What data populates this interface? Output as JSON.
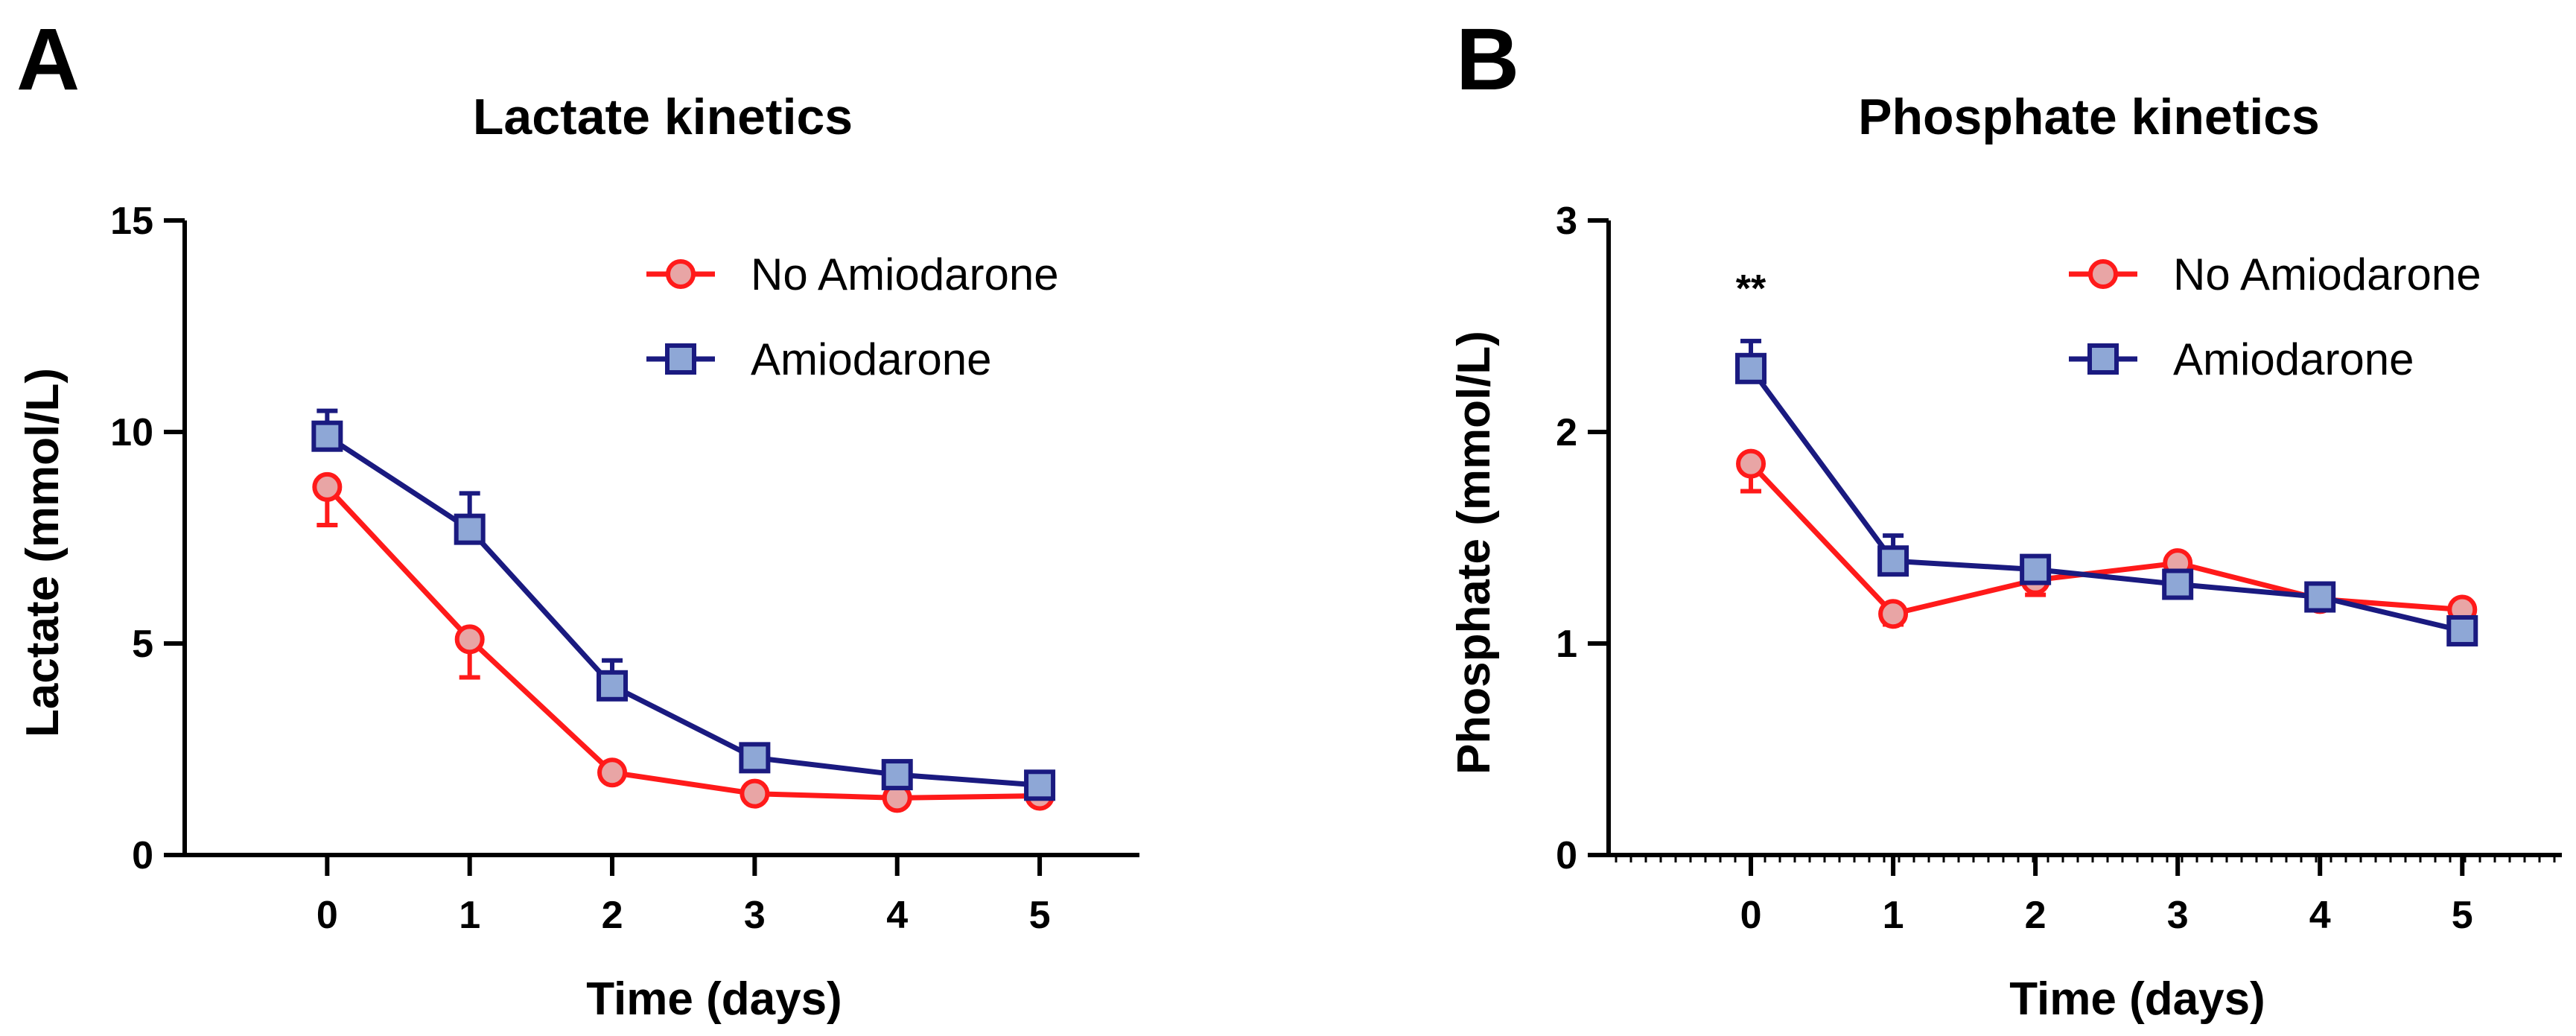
{
  "chart_data": [
    {
      "type": "line",
      "panel_label": "A",
      "title": "Lactate kinetics",
      "xlabel": "Time (days)",
      "ylabel": "Lactate (mmol/L)",
      "x": [
        0,
        1,
        2,
        3,
        4,
        5
      ],
      "xticks": [
        "0",
        "1",
        "2",
        "3",
        "4",
        "5"
      ],
      "xlim": [
        -1,
        5.7
      ],
      "ylim": [
        0,
        15
      ],
      "yticks": [
        0,
        5,
        10,
        15
      ],
      "yticks_labels": [
        "0",
        "5",
        "10",
        "15"
      ],
      "minor_ticks": false,
      "legend_position": "top-right",
      "annotations": [],
      "series": [
        {
          "name": "No Amiodarone",
          "marker": "circle",
          "line_color": "#ff1a1a",
          "fill_color": "#e8a5a5",
          "values": [
            8.7,
            5.1,
            1.95,
            1.45,
            1.35,
            1.4
          ],
          "error_upper": [
            null,
            null,
            null,
            null,
            null,
            null
          ],
          "error_lower": [
            0.9,
            0.9,
            null,
            null,
            null,
            null
          ]
        },
        {
          "name": "Amiodarone",
          "marker": "square",
          "line_color": "#1a1a80",
          "fill_color": "#8ea7d6",
          "values": [
            9.9,
            7.7,
            4.0,
            2.3,
            1.9,
            1.65
          ],
          "error_upper": [
            0.6,
            0.85,
            0.6,
            null,
            null,
            null
          ],
          "error_lower": [
            null,
            null,
            null,
            null,
            null,
            null
          ]
        }
      ]
    },
    {
      "type": "line",
      "panel_label": "B",
      "title": "Phosphate kinetics",
      "xlabel": "Time (days)",
      "ylabel": "Phosphate (mmol/L)",
      "x": [
        0,
        1,
        2,
        3,
        4,
        5
      ],
      "xticks": [
        "0",
        "1",
        "2",
        "3",
        "4",
        "5"
      ],
      "xlim": [
        -1,
        5.7
      ],
      "ylim": [
        0,
        3
      ],
      "yticks": [
        0,
        1,
        2,
        3
      ],
      "yticks_labels": [
        "0",
        "1",
        "2",
        "3"
      ],
      "minor_ticks": true,
      "legend_position": "top-right",
      "annotations": [
        {
          "text": "**",
          "x": 0,
          "y": 2.7
        }
      ],
      "series": [
        {
          "name": "No Amiodarone",
          "marker": "circle",
          "line_color": "#ff1a1a",
          "fill_color": "#e8a5a5",
          "values": [
            1.85,
            1.14,
            1.3,
            1.38,
            1.21,
            1.16
          ],
          "error_upper": [
            null,
            null,
            null,
            null,
            null,
            null
          ],
          "error_lower": [
            0.13,
            0.05,
            0.07,
            null,
            0.05,
            null
          ]
        },
        {
          "name": "Amiodarone",
          "marker": "square",
          "line_color": "#1a1a80",
          "fill_color": "#8ea7d6",
          "values": [
            2.3,
            1.39,
            1.35,
            1.28,
            1.22,
            1.06
          ],
          "error_upper": [
            0.13,
            0.12,
            0.05,
            null,
            0.05,
            null
          ],
          "error_lower": [
            null,
            null,
            null,
            null,
            null,
            null
          ]
        }
      ]
    }
  ]
}
